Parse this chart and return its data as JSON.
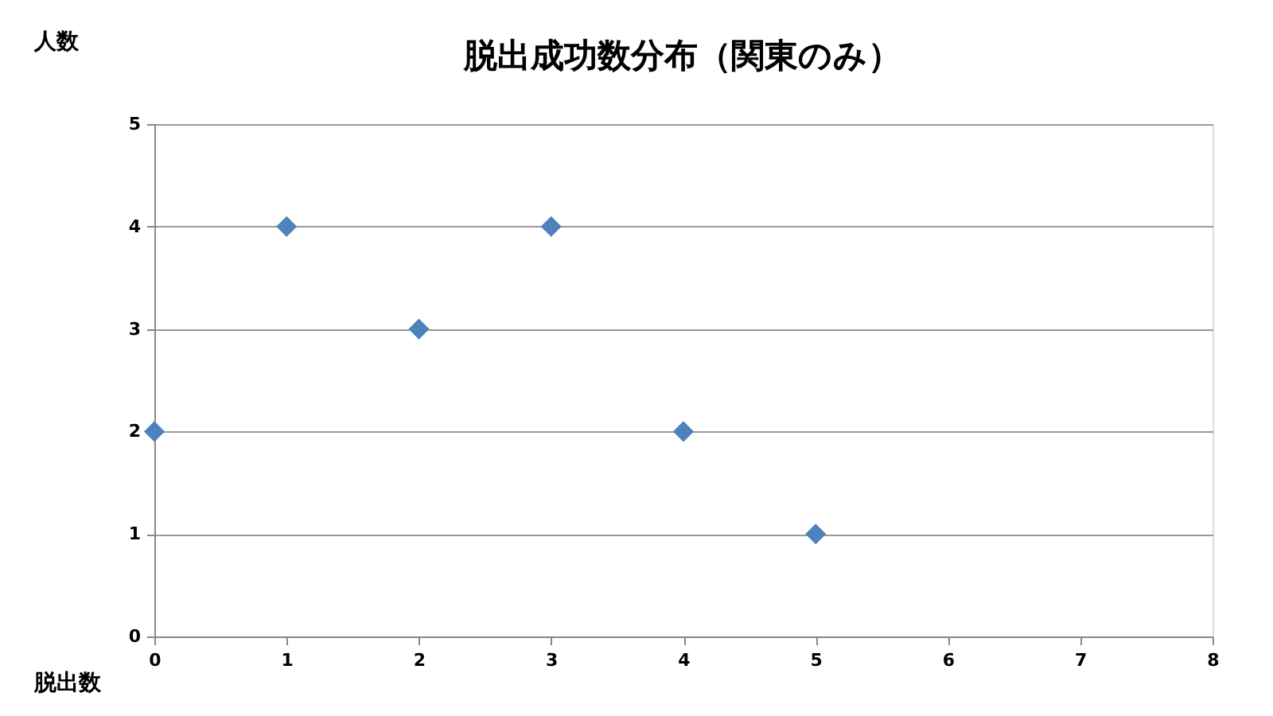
{
  "chart_data": {
    "type": "scatter",
    "title": "脱出成功数分布（関東のみ）",
    "xlabel": "脱出数",
    "ylabel": "人数",
    "x": [
      0,
      1,
      2,
      3,
      4,
      5
    ],
    "series": [
      {
        "color": "#4f81bd",
        "values": [
          2,
          4,
          3,
          4,
          2,
          1
        ]
      }
    ],
    "xlim": [
      0,
      8
    ],
    "xticks": [
      0,
      1,
      2,
      3,
      4,
      5,
      6,
      7,
      8
    ],
    "ylim": [
      0,
      5
    ],
    "yticks": [
      0,
      1,
      2,
      3,
      4,
      5
    ],
    "grid": "y",
    "marker": "diamond"
  }
}
